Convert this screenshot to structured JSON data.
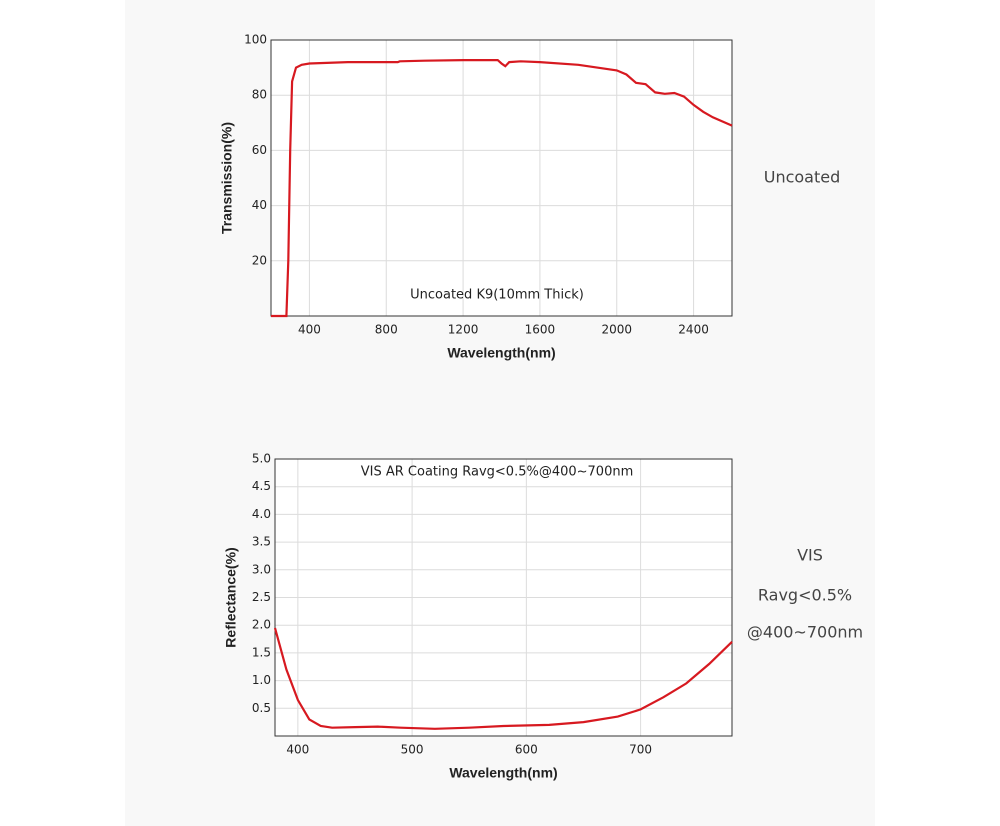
{
  "chart_data": [
    {
      "type": "line",
      "x_label": "Wavelength(nm)",
      "y_label": "Transmission(%)",
      "inner_label": "Uncoated K9(10mm Thick)",
      "side_labels": [
        "Uncoated"
      ],
      "x": [
        200,
        280,
        290,
        300,
        310,
        330,
        360,
        400,
        600,
        800,
        860,
        870,
        1000,
        1200,
        1380,
        1400,
        1420,
        1440,
        1500,
        1600,
        1800,
        2000,
        2050,
        2100,
        2150,
        2200,
        2250,
        2300,
        2350,
        2400,
        2450,
        2500,
        2600
      ],
      "values": [
        0,
        0,
        20,
        60,
        85,
        90,
        91,
        91.5,
        92,
        92,
        92,
        92.3,
        92.5,
        92.7,
        92.7,
        91.5,
        90.5,
        92,
        92.3,
        92,
        91,
        89,
        87.5,
        84.5,
        84,
        81,
        80.5,
        80.8,
        79.5,
        76.5,
        74,
        72,
        69
      ],
      "color": "#d71920",
      "xlim": [
        200,
        2600
      ],
      "ylim": [
        0,
        100
      ],
      "xticks": [
        400,
        800,
        1200,
        1600,
        2000,
        2400
      ],
      "yticks": [
        20,
        40,
        60,
        80,
        100
      ],
      "grid": true
    },
    {
      "type": "line",
      "title": "VIS AR Coating Ravg<0.5%@400~700nm",
      "x_label": "Wavelength(nm)",
      "y_label": "Reflectance(%)",
      "side_labels": [
        "VIS",
        "Ravg<0.5%",
        "@400~700nm"
      ],
      "x": [
        380,
        390,
        400,
        410,
        420,
        430,
        450,
        470,
        490,
        520,
        550,
        580,
        620,
        650,
        680,
        700,
        720,
        740,
        760,
        780
      ],
      "values": [
        1.95,
        1.2,
        0.65,
        0.3,
        0.18,
        0.15,
        0.16,
        0.17,
        0.15,
        0.13,
        0.15,
        0.18,
        0.2,
        0.25,
        0.35,
        0.48,
        0.7,
        0.95,
        1.3,
        1.7
      ],
      "color": "#d71920",
      "xlim": [
        380,
        780
      ],
      "ylim": [
        0,
        5
      ],
      "xticks": [
        400,
        500,
        600,
        700
      ],
      "yticks": [
        0.5,
        {
          "value": 1,
          "label": "1.0"
        },
        1.5,
        {
          "value": 2,
          "label": "2.0"
        },
        2.5,
        {
          "value": 3,
          "label": "3.0"
        },
        3.5,
        {
          "value": 4,
          "label": "4.0"
        },
        4.5,
        {
          "value": 5,
          "label": "5.0"
        }
      ],
      "grid": true
    }
  ]
}
